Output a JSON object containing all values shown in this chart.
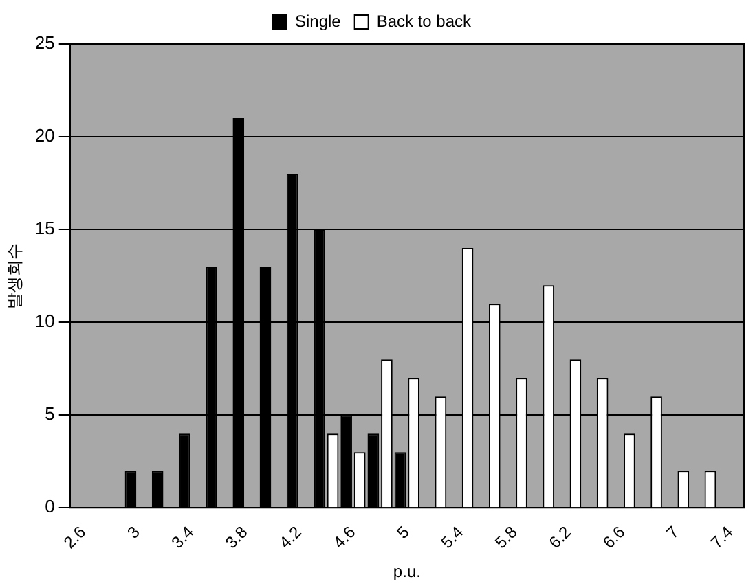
{
  "chart_data": {
    "type": "bar",
    "xlabel": "p.u.",
    "ylabel": "발생회수",
    "categories": [
      "2.6",
      null,
      "3",
      null,
      "3.4",
      null,
      "3.8",
      null,
      "4.2",
      null,
      "4.6",
      null,
      "5",
      null,
      "5.4",
      null,
      "5.8",
      null,
      "6.2",
      null,
      "6.6",
      null,
      "7",
      null,
      "7.4"
    ],
    "series": [
      {
        "name": "Single",
        "color": "#000000",
        "values": [
          null,
          null,
          2,
          2,
          4,
          13,
          21,
          13,
          18,
          15,
          5,
          4,
          3,
          null,
          null,
          null,
          null,
          null,
          null,
          null,
          null,
          null,
          null,
          null,
          null
        ]
      },
      {
        "name": "Back to back",
        "color": "#ffffff",
        "values": [
          null,
          null,
          null,
          null,
          null,
          null,
          null,
          null,
          null,
          4,
          3,
          8,
          7,
          6,
          14,
          11,
          7,
          12,
          8,
          7,
          4,
          6,
          2,
          2,
          null
        ]
      }
    ],
    "ylim": [
      0,
      25
    ],
    "yticks": [
      0,
      5,
      10,
      15,
      20,
      25
    ],
    "grid": "y",
    "legend": "top"
  }
}
